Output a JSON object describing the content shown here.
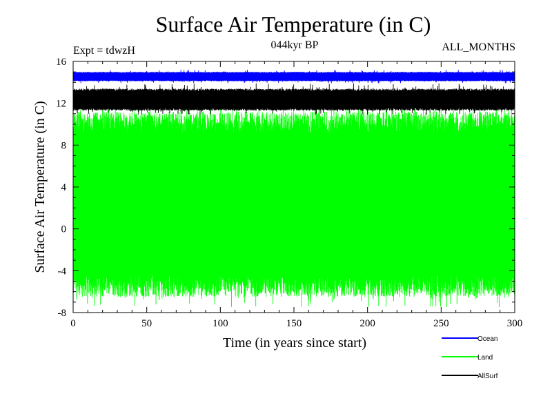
{
  "chart_data": {
    "type": "line",
    "title": "Surface Air Temperature (in C)",
    "subtitle": "044kyr BP",
    "left_note": "Expt = tdwzH",
    "right_note": "ALL_MONTHS",
    "xlabel": "Time (in years since start)",
    "ylabel": "Surface Air Temperature (in C)",
    "xlim": [
      0,
      300
    ],
    "ylim": [
      -8,
      16
    ],
    "x_ticks": [
      0,
      50,
      100,
      150,
      200,
      250,
      300
    ],
    "y_ticks": [
      -8,
      -4,
      0,
      4,
      8,
      12,
      16
    ],
    "grid": false,
    "legend_position": "bottom-right",
    "series": [
      {
        "name": "Ocean",
        "color": "#0000ff",
        "style": "seasonal-cycle",
        "min": 14.1,
        "max": 15.0,
        "min_extreme": 13.9,
        "max_extreme": 15.2
      },
      {
        "name": "Land",
        "color": "#00ff00",
        "style": "seasonal-cycle",
        "min": -6.5,
        "max": 11.2,
        "min_extreme": -7.5,
        "max_extreme": 11.8
      },
      {
        "name": "AllSurf",
        "color": "#000000",
        "style": "seasonal-cycle",
        "min": 11.3,
        "max": 13.4,
        "min_extreme": 10.9,
        "max_extreme": 13.9
      }
    ]
  }
}
